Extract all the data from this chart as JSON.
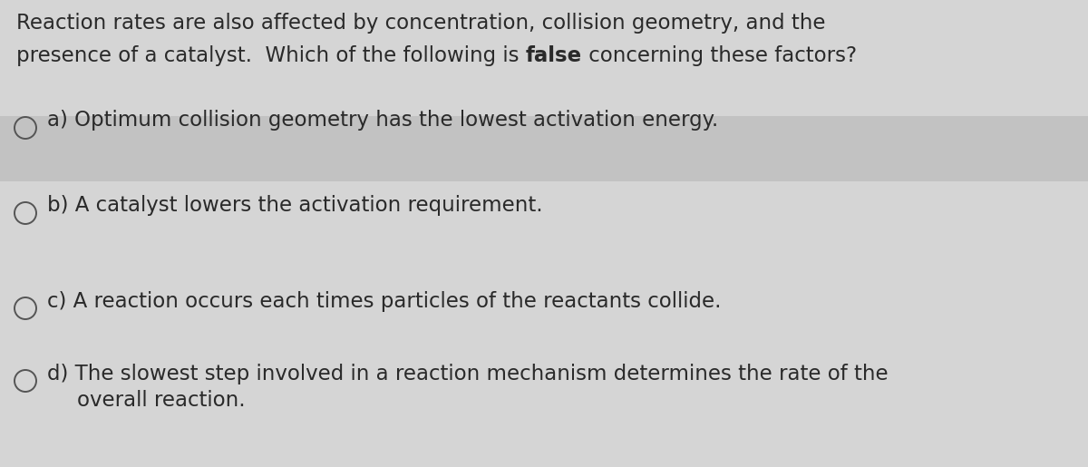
{
  "bg_color": "#d5d5d5",
  "highlight_color": "#c2c2c2",
  "q_line1": "Reaction rates are also affected by concentration, collision geometry, and the",
  "q_line2_pre": "presence of a catalyst.  Which of the following is ",
  "q_line2_bold": "false",
  "q_line2_post": " concerning these factors?",
  "options": [
    {
      "label": "a)",
      "line1": "Optimum collision geometry has the lowest activation energy.",
      "line2": null,
      "highlighted": true
    },
    {
      "label": "b)",
      "line1": "A catalyst lowers the activation requirement.",
      "line2": null,
      "highlighted": false
    },
    {
      "label": "c)",
      "line1": "A reaction occurs each times particles of the reactants collide.",
      "line2": null,
      "highlighted": false
    },
    {
      "label": "d)",
      "line1": "The slowest step involved in a reaction mechanism determines the rate of the",
      "line2": "overall reaction.",
      "highlighted": false
    }
  ],
  "font_size": 16.5,
  "text_color": "#2a2a2a",
  "circle_color": "#555555"
}
